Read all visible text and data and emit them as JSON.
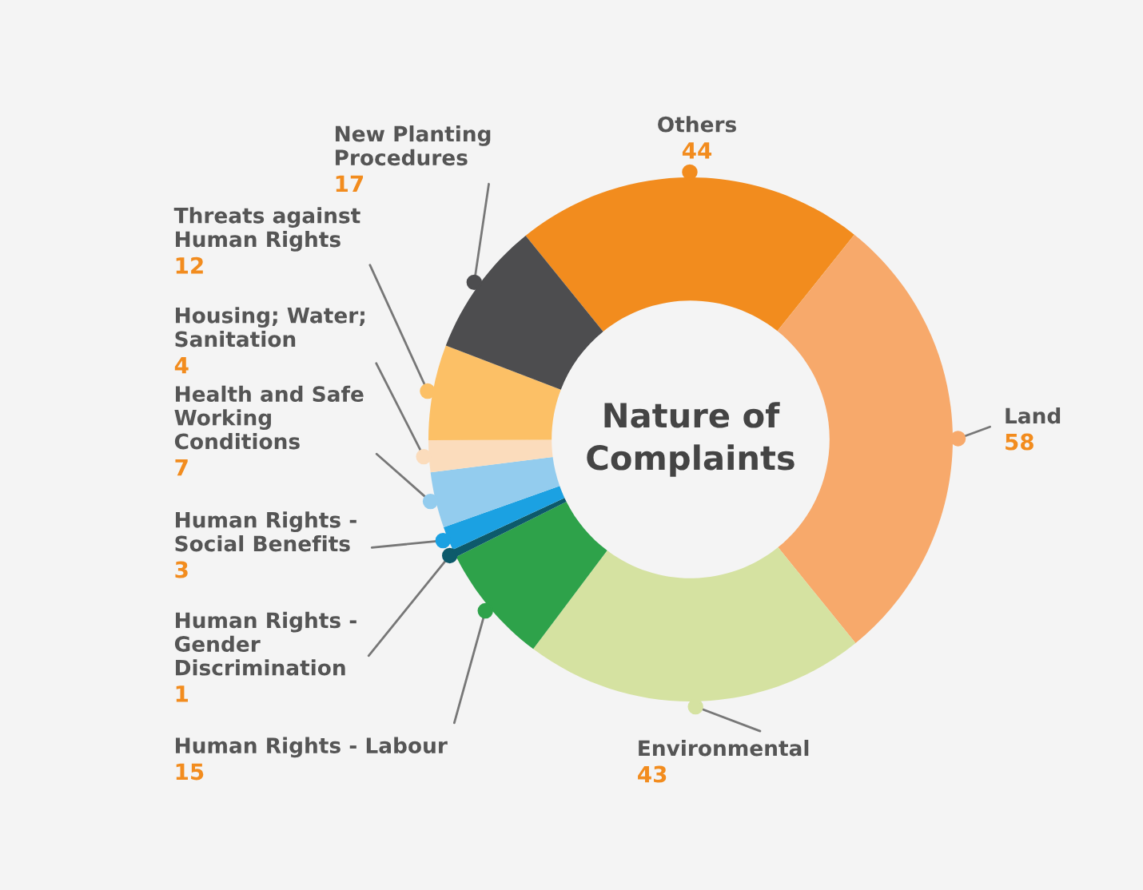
{
  "chart_data": {
    "type": "donut",
    "title": "Nature of Complaints",
    "categories": [
      "Others",
      "Land",
      "Environmental",
      "Human Rights - Labour",
      "Human Rights - Gender Discrimination",
      "Human Rights - Social Benefits",
      "Health and Safe Working Conditions",
      "Housing; Water; Sanitation",
      "Threats against Human Rights",
      "New Planting Procedures"
    ],
    "values": [
      44,
      58,
      43,
      15,
      1,
      3,
      7,
      4,
      12,
      17
    ],
    "colors": [
      "#f28c1e",
      "#f7a96b",
      "#d5e2a1",
      "#2ea24a",
      "#0d5a6b",
      "#1ba1e2",
      "#93ccee",
      "#fbdcbc",
      "#fcc066",
      "#4d4d4f"
    ],
    "data_labels": true,
    "legend": false
  }
}
